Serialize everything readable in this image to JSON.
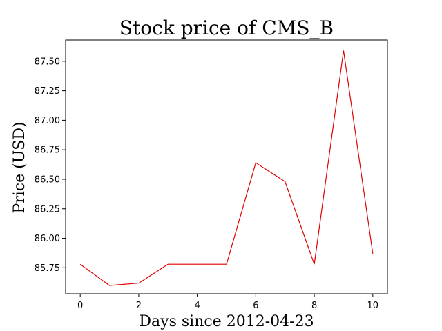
{
  "chart_data": {
    "type": "line",
    "title": "Stock price of CMS_B",
    "xlabel": "Days since 2012-04-23",
    "ylabel": "Price (USD)",
    "x": [
      0,
      1,
      2,
      3,
      4,
      5,
      6,
      7,
      8,
      9,
      10
    ],
    "series": [
      {
        "values": [
          85.78,
          85.6,
          85.62,
          85.78,
          85.78,
          85.78,
          86.64,
          86.48,
          85.78,
          87.59,
          85.87
        ],
        "color": "#e00000"
      }
    ],
    "xlim": [
      -0.5,
      10.5
    ],
    "ylim": [
      85.53,
      87.68
    ],
    "xticks": [
      0,
      2,
      4,
      6,
      8,
      10
    ],
    "yticks": [
      85.75,
      86.0,
      86.25,
      86.5,
      86.75,
      87.0,
      87.25,
      87.5
    ],
    "xtick_labels": [
      "0",
      "2",
      "4",
      "6",
      "8",
      "10"
    ],
    "ytick_labels": [
      "85.75",
      "86.00",
      "86.25",
      "86.50",
      "86.75",
      "87.00",
      "87.25",
      "87.50"
    ],
    "grid": false,
    "legend": "none"
  }
}
